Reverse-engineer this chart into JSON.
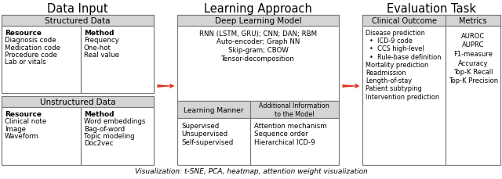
{
  "title_data_input": "Data Input",
  "title_learning": "Learning Approach",
  "title_evaluation": "Evaluation Task",
  "structured_data_title": "Structured Data",
  "unstructured_data_title": "Unstructured Data",
  "deep_learning_title": "Deep Learning Model",
  "clinical_outcome_title": "Clinical Outcome",
  "metrics_title": "Metrics",
  "learning_manner_title": "Learning Manner",
  "additional_info_title": "Additional Information\nto the Model",
  "structured_resource_bold": "Resource",
  "structured_resource_items": [
    "Diagnosis code",
    "Medication code",
    "Procedure code",
    "Lab or vitals"
  ],
  "structured_method_bold": "Method",
  "structured_method_items": [
    "Frequency",
    "One-hot",
    "Real value"
  ],
  "unstructured_resource_bold": "Resource",
  "unstructured_resource_items": [
    "Clinical note",
    "Image",
    "Waveform"
  ],
  "unstructured_method_bold": "Method",
  "unstructured_method_items": [
    "Word embeddings",
    "Bag-of-word",
    "Topic modeling",
    "Doc2vec"
  ],
  "deep_learning_lines": [
    "RNN (LSTM, GRU); CNN; DAN; RBM",
    "Auto-encoder; Graph NN",
    "Skip-gram; CBOW",
    "Tensor-decomposition"
  ],
  "learning_manner_items": [
    "Supervised",
    "Unsupervised",
    "Self-supervised"
  ],
  "additional_info_items": [
    "Attention mechanism",
    "Sequence order",
    "Hierarchical ICD-9"
  ],
  "clinical_outcome_items": [
    "Disease prediction",
    "•  ICD-9 code",
    "•  CCS high-level",
    "•  Rule-base definition",
    "Mortality prediction",
    "Readmission",
    "Length-of-stay",
    "Patient subtyping",
    "Intervention prediction"
  ],
  "metrics_items": [
    "AUROC",
    "AUPRC",
    "F1-measure",
    "Accuracy",
    "Top-K Recall",
    "Top-K Precision"
  ],
  "visualization_text": "Visualization: t-SNE, PCA, heatmap, attention weight visualization",
  "arrow_color": "#e03020",
  "header_bg": "#d4d4d4",
  "bg_color": "#ffffff"
}
